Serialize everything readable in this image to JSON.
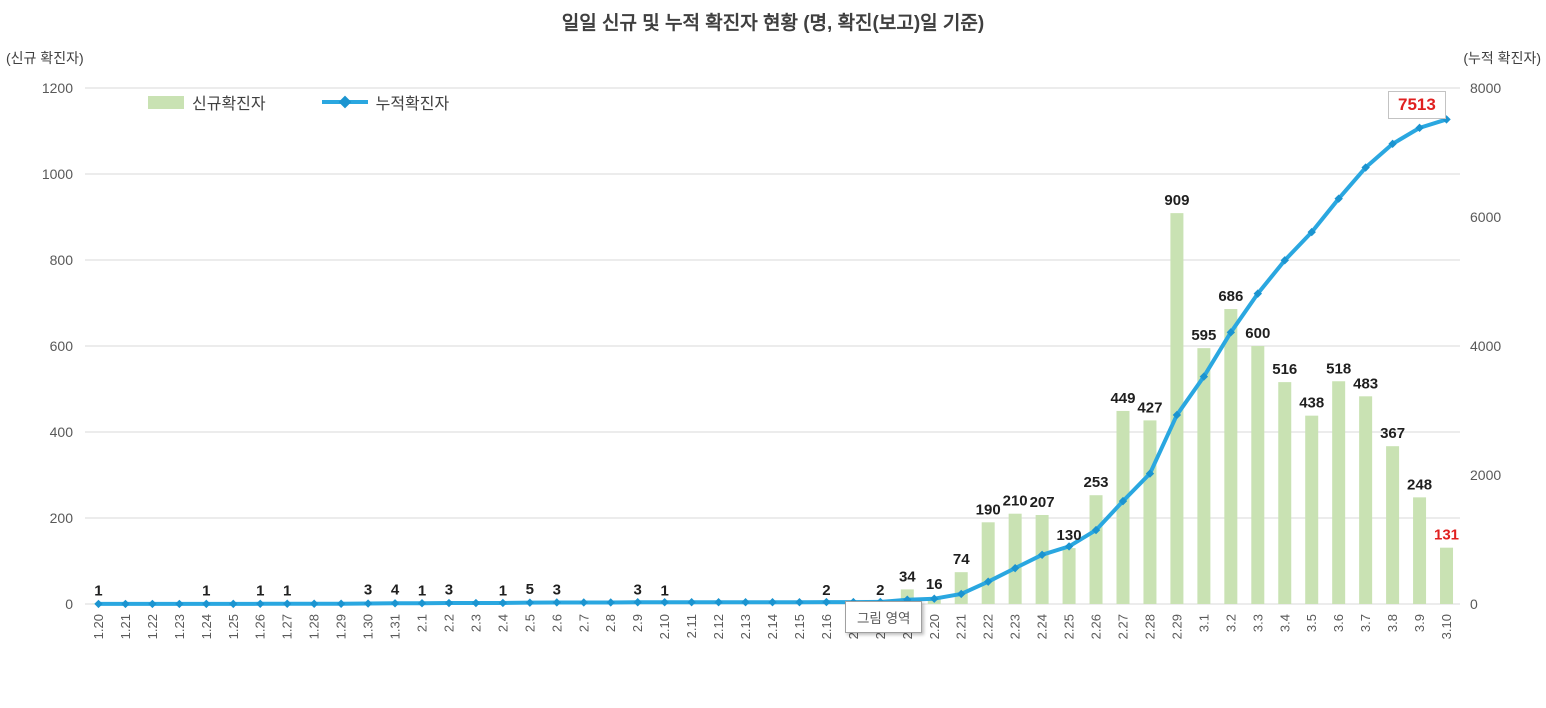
{
  "tooltip": {
    "text": "그림 영역"
  },
  "chart_data": {
    "type": "bar+line",
    "title": "일일 신규 및 누적 확진자 현황 (명, 확진(보고)일 기준)",
    "categories": [
      "1.20",
      "1.21",
      "1.22",
      "1.23",
      "1.24",
      "1.25",
      "1.26",
      "1.27",
      "1.28",
      "1.29",
      "1.30",
      "1.31",
      "2.1",
      "2.2",
      "2.3",
      "2.4",
      "2.5",
      "2.6",
      "2.7",
      "2.8",
      "2.9",
      "2.10",
      "2.11",
      "2.12",
      "2.13",
      "2.14",
      "2.15",
      "2.16",
      "2.17",
      "2.18",
      "2.19",
      "2.20",
      "2.21",
      "2.22",
      "2.23",
      "2.24",
      "2.25",
      "2.26",
      "2.27",
      "2.28",
      "2.29",
      "3.1",
      "3.2",
      "3.3",
      "3.4",
      "3.5",
      "3.6",
      "3.7",
      "3.8",
      "3.9",
      "3.10"
    ],
    "series": [
      {
        "name": "신규확진자",
        "chart": "bar",
        "axis": "left",
        "color": "#c9e2b3",
        "values": [
          1,
          0,
          0,
          0,
          1,
          0,
          1,
          1,
          0,
          0,
          3,
          4,
          1,
          3,
          0,
          1,
          5,
          3,
          0,
          0,
          3,
          1,
          0,
          0,
          0,
          0,
          0,
          2,
          0,
          2,
          34,
          16,
          74,
          190,
          210,
          207,
          130,
          253,
          449,
          427,
          909,
          595,
          686,
          600,
          516,
          438,
          518,
          483,
          367,
          248,
          131
        ]
      },
      {
        "name": "누적확진자",
        "chart": "line",
        "axis": "right",
        "color": "#2aa7e0",
        "marker_color": "#1b94d0",
        "values": [
          1,
          1,
          1,
          1,
          2,
          2,
          3,
          4,
          4,
          4,
          7,
          11,
          12,
          15,
          15,
          16,
          21,
          24,
          24,
          24,
          27,
          28,
          28,
          28,
          28,
          28,
          28,
          30,
          30,
          32,
          66,
          82,
          156,
          346,
          556,
          763,
          893,
          1146,
          1595,
          2022,
          2931,
          3526,
          4212,
          4812,
          5328,
          5766,
          6284,
          6767,
          7134,
          7382,
          7513
        ]
      }
    ],
    "left_axis": {
      "label": "(신규 확진자)",
      "min": 0,
      "max": 1200,
      "ticks": [
        0,
        200,
        400,
        600,
        800,
        1000,
        1200
      ]
    },
    "right_axis": {
      "label": "(누적 확진자)",
      "min": 0,
      "max": 8000,
      "ticks": [
        0,
        2000,
        4000,
        6000,
        8000
      ]
    },
    "grid": "horizontal",
    "legend_position": "top-left",
    "label_color": "#1f1f1f",
    "tick_color": "#595959",
    "grid_color": "#d9d9d9",
    "highlight_color": "#e02020",
    "last_bar_label": {
      "text": "131",
      "color": "#e02020"
    },
    "final_value_label": {
      "text": "7513",
      "series": "누적확진자",
      "color": "#e02020",
      "boxed": true
    }
  }
}
